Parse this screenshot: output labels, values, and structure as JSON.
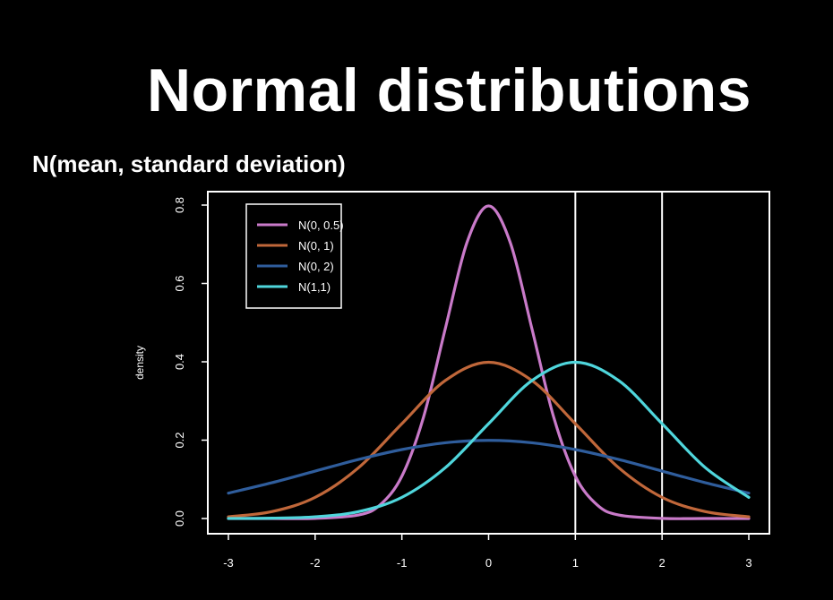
{
  "slide": {
    "title": "Normal distributions",
    "subtitle": "N(mean, standard deviation)"
  },
  "chart_data": {
    "type": "line",
    "title": "",
    "xlabel": "",
    "ylabel": "density",
    "xlim": [
      -3,
      3
    ],
    "ylim": [
      0,
      0.8
    ],
    "x_ticks": [
      -3,
      -2,
      -1,
      0,
      1,
      2,
      3
    ],
    "y_ticks": [
      0.0,
      0.2,
      0.4,
      0.6,
      0.8
    ],
    "y_tick_labels": [
      "0.0",
      "0.2",
      "0.4",
      "0.6",
      "0.8"
    ],
    "grid": false,
    "legend_position": "top-left",
    "vertical_lines": [
      1,
      2
    ],
    "series": [
      {
        "name": "N(0, 0.5)",
        "color": "#c97ac9",
        "x": [
          -3,
          -2.5,
          -2,
          -1.5,
          -1.25,
          -1,
          -0.75,
          -0.5,
          -0.25,
          0,
          0.25,
          0.5,
          0.75,
          1,
          1.25,
          1.5,
          2,
          2.5,
          3
        ],
        "values": [
          0.0,
          0.0,
          0.0003,
          0.0089,
          0.035,
          0.108,
          0.259,
          0.4839,
          0.7041,
          0.7979,
          0.7041,
          0.4839,
          0.259,
          0.108,
          0.035,
          0.0089,
          0.0003,
          0.0,
          0.0
        ]
      },
      {
        "name": "N(0, 1)",
        "color": "#c0673a",
        "x": [
          -3,
          -2.5,
          -2,
          -1.5,
          -1,
          -0.5,
          0,
          0.5,
          1,
          1.5,
          2,
          2.5,
          3
        ],
        "values": [
          0.0044,
          0.0175,
          0.054,
          0.1295,
          0.242,
          0.3521,
          0.3989,
          0.3521,
          0.242,
          0.1295,
          0.054,
          0.0175,
          0.0044
        ]
      },
      {
        "name": "N(0, 2)",
        "color": "#2f5d9c",
        "x": [
          -3,
          -2.5,
          -2,
          -1.5,
          -1,
          -0.5,
          0,
          0.5,
          1,
          1.5,
          2,
          2.5,
          3
        ],
        "values": [
          0.0648,
          0.0913,
          0.121,
          0.1506,
          0.176,
          0.1933,
          0.1995,
          0.1933,
          0.176,
          0.1506,
          0.121,
          0.0913,
          0.0648
        ]
      },
      {
        "name": "N(1,1)",
        "color": "#4fd6dc",
        "x": [
          -3,
          -2.5,
          -2,
          -1.5,
          -1,
          -0.5,
          0,
          0.5,
          1,
          1.5,
          2,
          2.5,
          3
        ],
        "values": [
          0.0001,
          0.0009,
          0.0044,
          0.0175,
          0.054,
          0.1295,
          0.242,
          0.3521,
          0.3989,
          0.3521,
          0.242,
          0.1295,
          0.054
        ]
      }
    ]
  }
}
